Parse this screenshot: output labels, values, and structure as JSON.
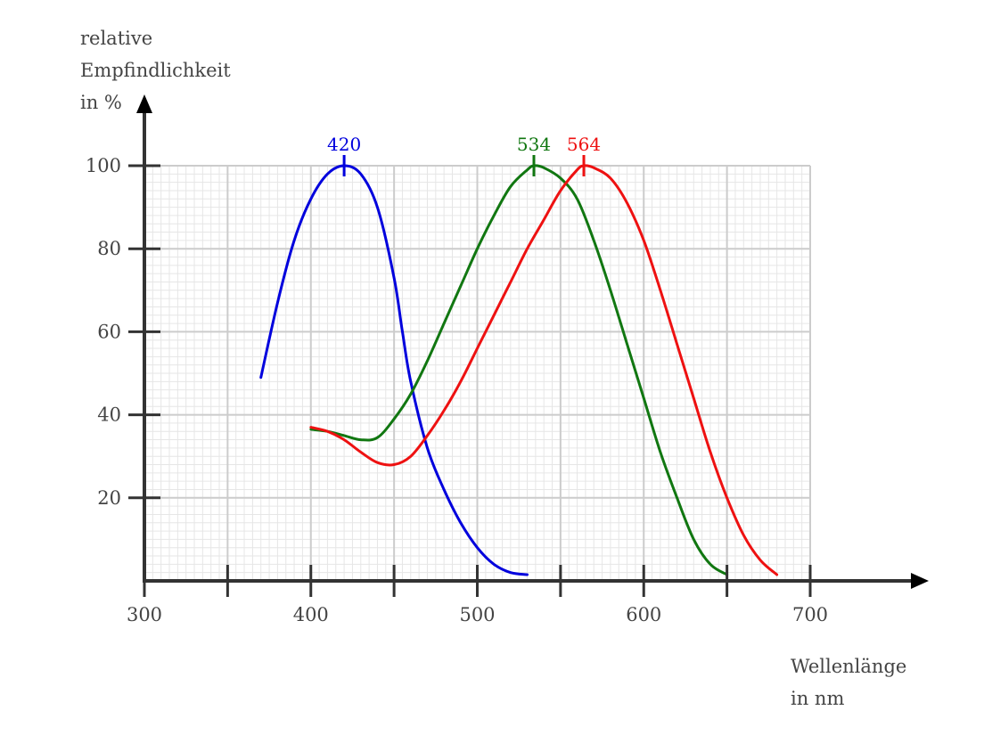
{
  "chart_data": {
    "type": "line",
    "ylabel": [
      "relative",
      "Empfindlichkeit",
      "in %"
    ],
    "xlabel": [
      "Wellenlänge",
      "in nm"
    ],
    "xlim": [
      300,
      700
    ],
    "ylim": [
      0,
      100
    ],
    "x_ticks_labeled": [
      300,
      400,
      500,
      600,
      700
    ],
    "x_ticks_all": [
      300,
      350,
      400,
      450,
      500,
      550,
      600,
      650,
      700
    ],
    "y_ticks": [
      20,
      40,
      60,
      80,
      100
    ],
    "grid": true,
    "series": [
      {
        "color": "#0000dd",
        "peak_label": "420",
        "peak_x": 420,
        "x": [
          370,
          380,
          390,
          400,
          410,
          420,
          430,
          440,
          450,
          455,
          460,
          470,
          480,
          490,
          500,
          510,
          520,
          530
        ],
        "y": [
          49,
          67,
          82,
          92,
          98,
          100,
          98,
          90,
          73,
          60,
          48,
          32,
          22,
          14,
          8,
          4,
          2,
          1.5
        ]
      },
      {
        "color": "#117711",
        "peak_label": "534",
        "peak_x": 534,
        "x": [
          400,
          410,
          420,
          430,
          440,
          450,
          460,
          470,
          480,
          490,
          500,
          510,
          520,
          530,
          534,
          540,
          550,
          560,
          570,
          580,
          590,
          600,
          610,
          620,
          630,
          640,
          650
        ],
        "y": [
          36.5,
          36,
          35,
          34,
          34.5,
          39,
          45,
          53,
          62,
          71,
          80,
          88,
          95,
          99,
          100,
          99.5,
          97,
          92,
          82,
          70,
          57,
          44,
          31,
          20,
          10,
          4,
          1.5
        ]
      },
      {
        "color": "#ee1111",
        "peak_label": "564",
        "peak_x": 564,
        "x": [
          400,
          410,
          420,
          430,
          440,
          450,
          460,
          470,
          480,
          490,
          500,
          510,
          520,
          530,
          540,
          550,
          560,
          564,
          570,
          580,
          590,
          600,
          610,
          620,
          630,
          640,
          650,
          660,
          670,
          680
        ],
        "y": [
          37,
          36,
          34,
          31,
          28.5,
          28,
          30,
          35,
          41,
          48,
          56,
          64,
          72,
          80,
          87,
          94,
          99,
          100,
          99.5,
          97,
          91,
          82,
          70,
          57,
          44,
          31,
          20,
          11,
          5,
          1.5
        ]
      }
    ]
  }
}
